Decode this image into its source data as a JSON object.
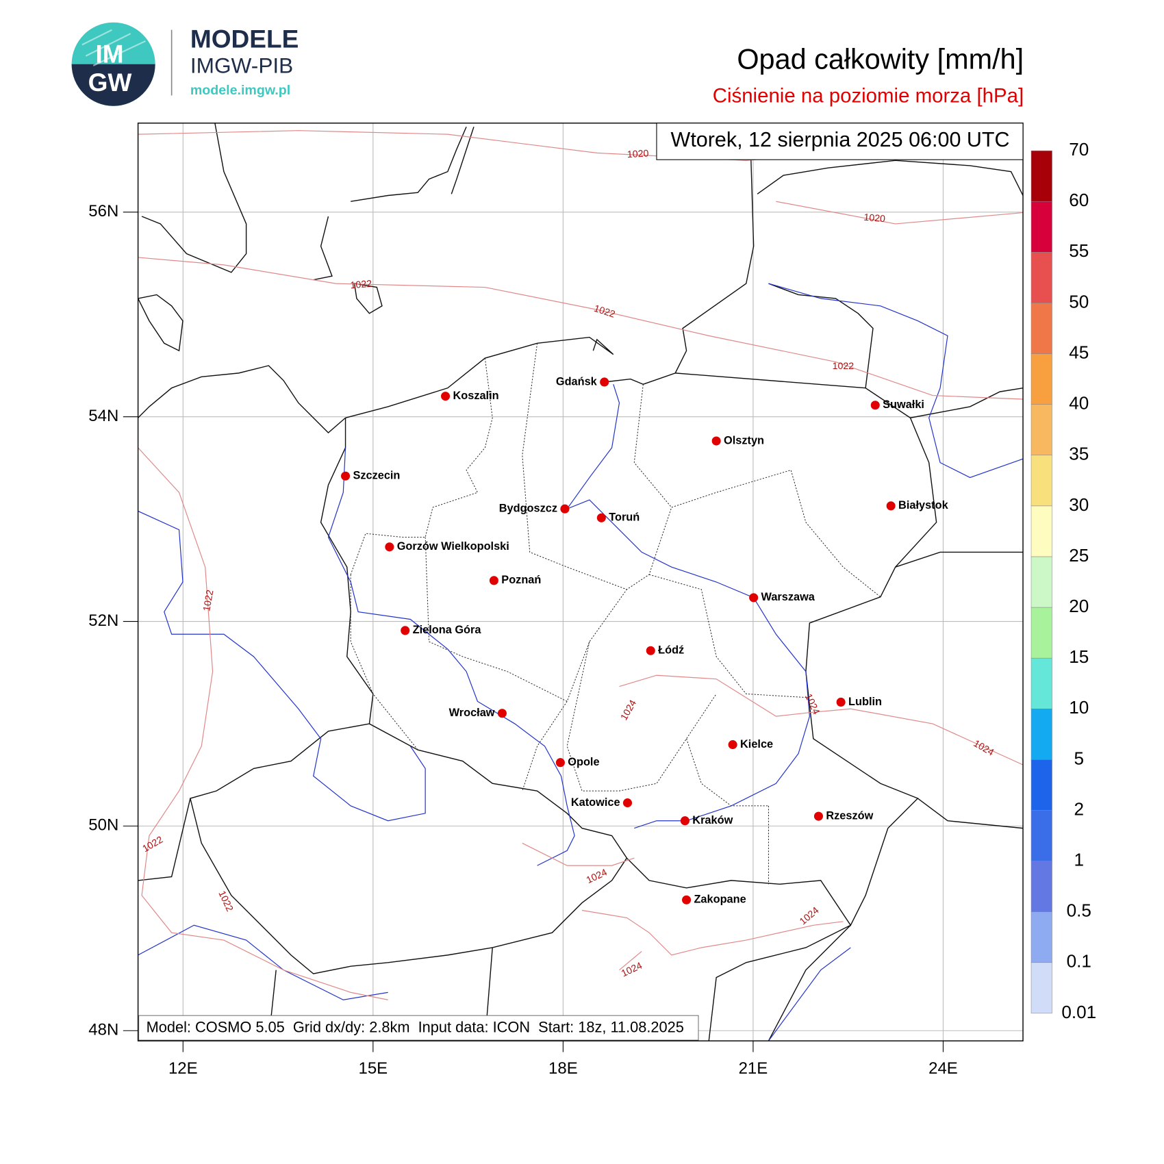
{
  "header": {
    "logo_top": "IM",
    "logo_bottom": "GW",
    "brand": "MODELE",
    "institute": "IMGW-PIB",
    "url": "modele.imgw.pl"
  },
  "title": "Opad całkowity [mm/h]",
  "subtitle": "Ciśnienie na poziomie morza [hPa]",
  "timestamp": "Wtorek, 12 sierpnia 2025 06:00 UTC",
  "model_info": "Model: COSMO 5.05  Grid dx/dy: 2.8km  Input data: ICON  Start: 18z, 11.08.2025",
  "map": {
    "lonlim": [
      11.29,
      25.26
    ],
    "latlim": [
      47.9,
      56.87
    ],
    "lon_ticks": [
      {
        "value": 12,
        "label": "12E"
      },
      {
        "value": 15,
        "label": "15E"
      },
      {
        "value": 18,
        "label": "18E"
      },
      {
        "value": 21,
        "label": "21E"
      },
      {
        "value": 24,
        "label": "24E"
      }
    ],
    "lat_ticks": [
      {
        "value": 48,
        "label": "48N"
      },
      {
        "value": 50,
        "label": "50N"
      },
      {
        "value": 52,
        "label": "52N"
      },
      {
        "value": 54,
        "label": "54N"
      },
      {
        "value": 56,
        "label": "56N"
      }
    ],
    "grid": true,
    "cities": [
      "Gdańsk",
      "Koszalin",
      "Szczecin",
      "Bydgoszcz",
      "Toruń",
      "Olsztyn",
      "Suwałki",
      "Białystok",
      "Gorzów Wielkopolski",
      "Poznań",
      "Warszawa",
      "Zielona Góra",
      "Łódź",
      "Lublin",
      "Wrocław",
      "Kielce",
      "Opole",
      "Katowice",
      "Kraków",
      "Rzeszów",
      "Zakopane"
    ],
    "city_color": "#e00000",
    "isobar_labels": [
      1020,
      1020,
      1022,
      1022,
      1022,
      1022,
      1022,
      1022,
      1024,
      1024,
      1024,
      1024,
      1024,
      1024
    ],
    "isobar_color": "#e08888"
  },
  "colorbar": {
    "levels": [
      0.01,
      0.1,
      0.5,
      1,
      2,
      5,
      10,
      15,
      20,
      25,
      30,
      35,
      40,
      45,
      50,
      55,
      60,
      70
    ],
    "colors": [
      "#d0dcf8",
      "#8eaaf0",
      "#6478e4",
      "#3a6ee8",
      "#1e64ea",
      "#14aaf2",
      "#64e6d8",
      "#a8f29c",
      "#ccf8c8",
      "#fffcc0",
      "#f8e07c",
      "#f8b860",
      "#f8a040",
      "#f07848",
      "#e85050",
      "#d8003a",
      "#a80008",
      "#780000"
    ]
  }
}
